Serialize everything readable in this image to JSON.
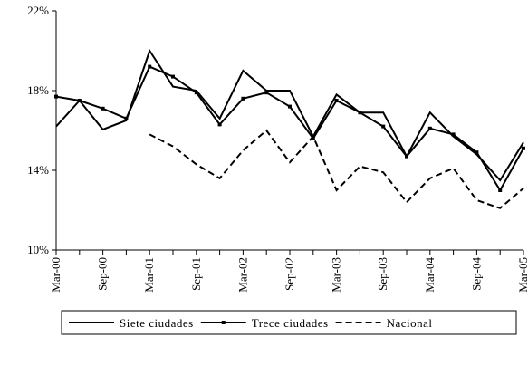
{
  "chart_data": {
    "type": "line",
    "categories": [
      "Mar-00",
      null,
      "Sep-00",
      null,
      "Mar-01",
      null,
      "Sep-01",
      null,
      "Mar-02",
      null,
      "Sep-02",
      null,
      "Mar-03",
      null,
      "Sep-03",
      null,
      "Mar-04",
      null,
      "Sep-04",
      null,
      "Mar-05"
    ],
    "series": [
      {
        "name": "Siete ciudades",
        "color": "#000000",
        "line_style": "solid",
        "marker": false,
        "values": [
          16.2,
          17.5,
          16.05,
          16.5,
          20.0,
          18.2,
          18.0,
          16.6,
          19.0,
          18.0,
          18.0,
          15.7,
          17.8,
          16.9,
          16.9,
          14.7,
          16.9,
          15.7,
          14.8,
          13.5,
          15.4
        ]
      },
      {
        "name": "Trece ciudades",
        "color": "#000000",
        "line_style": "solid",
        "marker": true,
        "values": [
          17.7,
          17.5,
          17.1,
          16.6,
          19.2,
          18.7,
          17.9,
          16.3,
          17.6,
          17.9,
          17.2,
          15.6,
          17.5,
          16.9,
          16.2,
          14.7,
          16.1,
          15.8,
          14.9,
          13.0,
          15.1
        ]
      },
      {
        "name": "Nacional",
        "color": "#000000",
        "line_style": "dashed",
        "marker": false,
        "values": [
          null,
          null,
          null,
          null,
          15.8,
          15.2,
          14.3,
          13.6,
          15.0,
          16.0,
          14.4,
          15.7,
          13.0,
          14.2,
          13.9,
          12.4,
          13.6,
          14.1,
          12.5,
          12.1,
          13.1
        ]
      }
    ],
    "ylim": [
      10,
      22
    ],
    "yticks": [
      {
        "value": 10,
        "label": "10%"
      },
      {
        "value": 14,
        "label": "14%"
      },
      {
        "value": 18,
        "label": "18%"
      },
      {
        "value": 22,
        "label": "22%"
      }
    ],
    "grid": false,
    "legend": "bottom"
  }
}
